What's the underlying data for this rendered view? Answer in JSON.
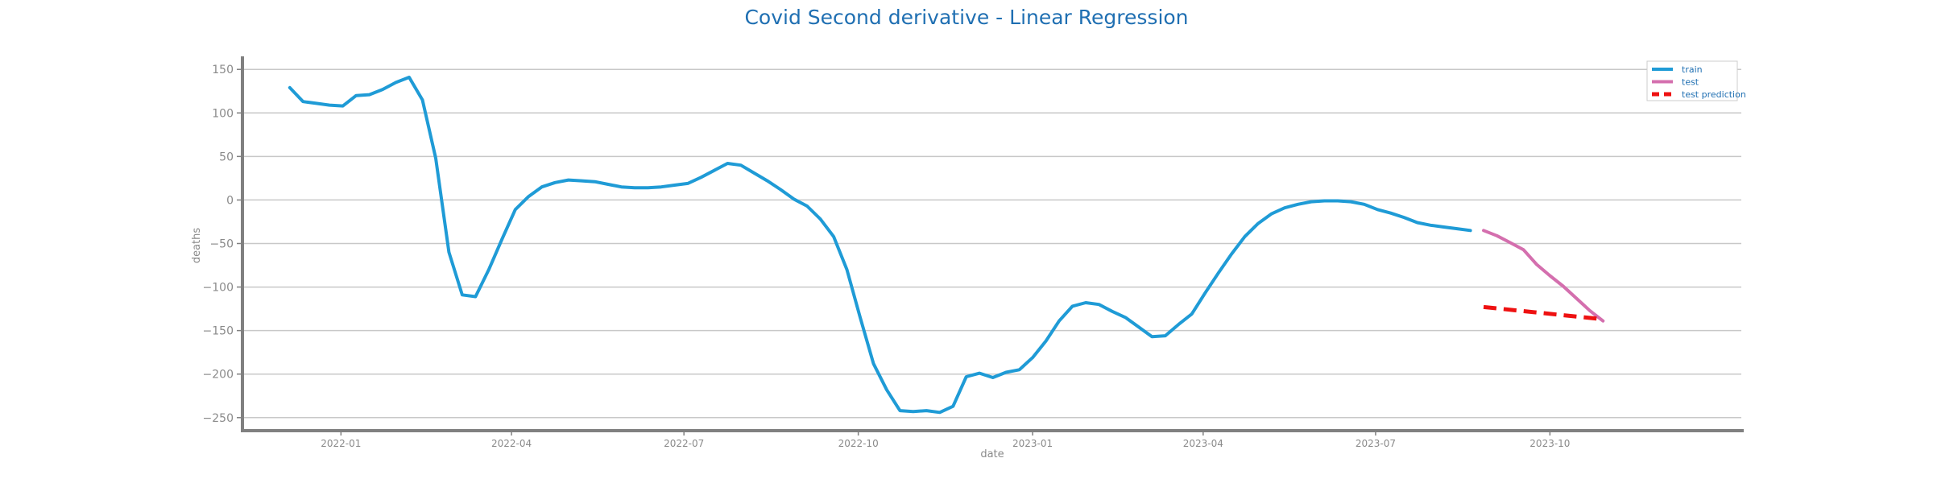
{
  "chart_data": {
    "type": "line",
    "title": "Covid Second derivative - Linear Regression",
    "xlabel": "date",
    "ylabel": "deaths",
    "xlim": [
      "2021-11-10",
      "2024-01-10"
    ],
    "ylim": [
      -265,
      165
    ],
    "y_ticks": [
      150,
      100,
      50,
      0,
      -50,
      -100,
      -150,
      -200,
      -250
    ],
    "y_tick_labels": [
      "150",
      "100",
      "50",
      "0",
      "−50",
      "−100",
      "−150",
      "−200",
      "−250"
    ],
    "x_ticks": [
      "2022-01-01",
      "2022-04-01",
      "2022-07-01",
      "2022-10-01",
      "2023-01-01",
      "2023-04-01",
      "2023-07-01",
      "2023-10-01"
    ],
    "x_tick_labels": [
      "2022-01",
      "2022-04",
      "2022-07",
      "2022-10",
      "2023-01",
      "2023-04",
      "2023-07",
      "2023-10"
    ],
    "grid": "horizontal",
    "legend_position": "top-right",
    "series": [
      {
        "name": "train",
        "color": "#1f9bd6",
        "style": "solid",
        "points": [
          [
            "2021-12-05",
            129
          ],
          [
            "2021-12-12",
            113
          ],
          [
            "2021-12-19",
            111
          ],
          [
            "2021-12-26",
            109
          ],
          [
            "2022-01-02",
            108
          ],
          [
            "2022-01-09",
            120
          ],
          [
            "2022-01-16",
            121
          ],
          [
            "2022-01-23",
            127
          ],
          [
            "2022-01-30",
            135
          ],
          [
            "2022-02-06",
            141
          ],
          [
            "2022-02-13",
            115
          ],
          [
            "2022-02-20",
            48
          ],
          [
            "2022-02-27",
            -60
          ],
          [
            "2022-03-06",
            -109
          ],
          [
            "2022-03-13",
            -111
          ],
          [
            "2022-03-20",
            -80
          ],
          [
            "2022-03-27",
            -45
          ],
          [
            "2022-04-03",
            -11
          ],
          [
            "2022-04-10",
            4
          ],
          [
            "2022-04-17",
            15
          ],
          [
            "2022-04-24",
            20
          ],
          [
            "2022-05-01",
            23
          ],
          [
            "2022-05-08",
            22
          ],
          [
            "2022-05-15",
            21
          ],
          [
            "2022-05-22",
            18
          ],
          [
            "2022-05-29",
            15
          ],
          [
            "2022-06-05",
            14
          ],
          [
            "2022-06-12",
            14
          ],
          [
            "2022-06-19",
            15
          ],
          [
            "2022-06-26",
            17
          ],
          [
            "2022-07-03",
            19
          ],
          [
            "2022-07-10",
            26
          ],
          [
            "2022-07-17",
            34
          ],
          [
            "2022-07-24",
            42
          ],
          [
            "2022-07-31",
            40
          ],
          [
            "2022-08-07",
            31
          ],
          [
            "2022-08-14",
            22
          ],
          [
            "2022-08-21",
            12
          ],
          [
            "2022-08-28",
            1
          ],
          [
            "2022-09-04",
            -7
          ],
          [
            "2022-09-11",
            -22
          ],
          [
            "2022-09-18",
            -42
          ],
          [
            "2022-09-25",
            -80
          ],
          [
            "2022-10-02",
            -135
          ],
          [
            "2022-10-09",
            -188
          ],
          [
            "2022-10-16",
            -218
          ],
          [
            "2022-10-23",
            -242
          ],
          [
            "2022-10-30",
            -243
          ],
          [
            "2022-11-06",
            -242
          ],
          [
            "2022-11-13",
            -244
          ],
          [
            "2022-11-20",
            -237
          ],
          [
            "2022-11-27",
            -203
          ],
          [
            "2022-12-04",
            -199
          ],
          [
            "2022-12-11",
            -204
          ],
          [
            "2022-12-18",
            -198
          ],
          [
            "2022-12-25",
            -195
          ],
          [
            "2023-01-01",
            -181
          ],
          [
            "2023-01-08",
            -162
          ],
          [
            "2023-01-15",
            -139
          ],
          [
            "2023-01-22",
            -122
          ],
          [
            "2023-01-29",
            -118
          ],
          [
            "2023-02-05",
            -120
          ],
          [
            "2023-02-12",
            -128
          ],
          [
            "2023-02-19",
            -135
          ],
          [
            "2023-02-26",
            -146
          ],
          [
            "2023-03-05",
            -157
          ],
          [
            "2023-03-12",
            -156
          ],
          [
            "2023-03-19",
            -143
          ],
          [
            "2023-03-26",
            -131
          ],
          [
            "2023-04-02",
            -107
          ],
          [
            "2023-04-09",
            -84
          ],
          [
            "2023-04-16",
            -62
          ],
          [
            "2023-04-23",
            -42
          ],
          [
            "2023-04-30",
            -27
          ],
          [
            "2023-05-07",
            -16
          ],
          [
            "2023-05-14",
            -9
          ],
          [
            "2023-05-21",
            -5
          ],
          [
            "2023-05-28",
            -2
          ],
          [
            "2023-06-04",
            -1
          ],
          [
            "2023-06-11",
            -1
          ],
          [
            "2023-06-18",
            -2
          ],
          [
            "2023-06-25",
            -5
          ],
          [
            "2023-07-02",
            -11
          ],
          [
            "2023-07-09",
            -15
          ],
          [
            "2023-07-16",
            -20
          ],
          [
            "2023-07-23",
            -26
          ],
          [
            "2023-07-30",
            -29
          ],
          [
            "2023-08-06",
            -31
          ],
          [
            "2023-08-13",
            -33
          ],
          [
            "2023-08-20",
            -35
          ]
        ]
      },
      {
        "name": "test",
        "color": "#d46fae",
        "style": "solid",
        "points": [
          [
            "2023-08-27",
            -35
          ],
          [
            "2023-09-03",
            -41
          ],
          [
            "2023-09-10",
            -49
          ],
          [
            "2023-09-17",
            -57
          ],
          [
            "2023-09-24",
            -74
          ],
          [
            "2023-10-01",
            -87
          ],
          [
            "2023-10-08",
            -99
          ],
          [
            "2023-10-15",
            -113
          ],
          [
            "2023-10-22",
            -127
          ],
          [
            "2023-10-29",
            -139
          ]
        ]
      },
      {
        "name": "test prediction",
        "color": "#ee1111",
        "style": "dashed",
        "points": [
          [
            "2023-08-27",
            -123
          ],
          [
            "2023-10-29",
            -137
          ]
        ]
      }
    ]
  }
}
